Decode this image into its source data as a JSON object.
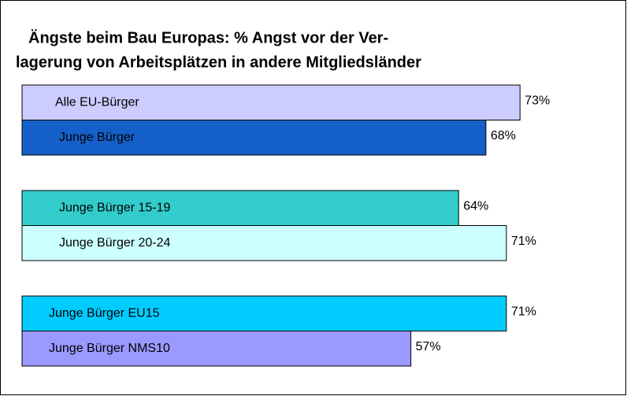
{
  "chart_data": {
    "type": "bar",
    "orientation": "horizontal",
    "title": [
      "Ängste beim Bau Europas: % Angst vor der Ver-",
      "lagerung von Arbeitsplätzen in andere Mitgliedsländer"
    ],
    "categories": [
      "Alle EU-Bürger",
      "Junge Bürger",
      "Junge Bürger 15-19",
      "Junge Bürger 20-24",
      "Junge Bürger EU15",
      "Junge Bürger NMS10"
    ],
    "values": [
      73,
      68,
      64,
      71,
      71,
      57
    ],
    "value_labels": [
      "73%",
      "68%",
      "64%",
      "71%",
      "71%",
      "57%"
    ],
    "colors": [
      "#ccccff",
      "#1560c8",
      "#33cccc",
      "#ccffff",
      "#00ccff",
      "#9999ff"
    ]
  }
}
